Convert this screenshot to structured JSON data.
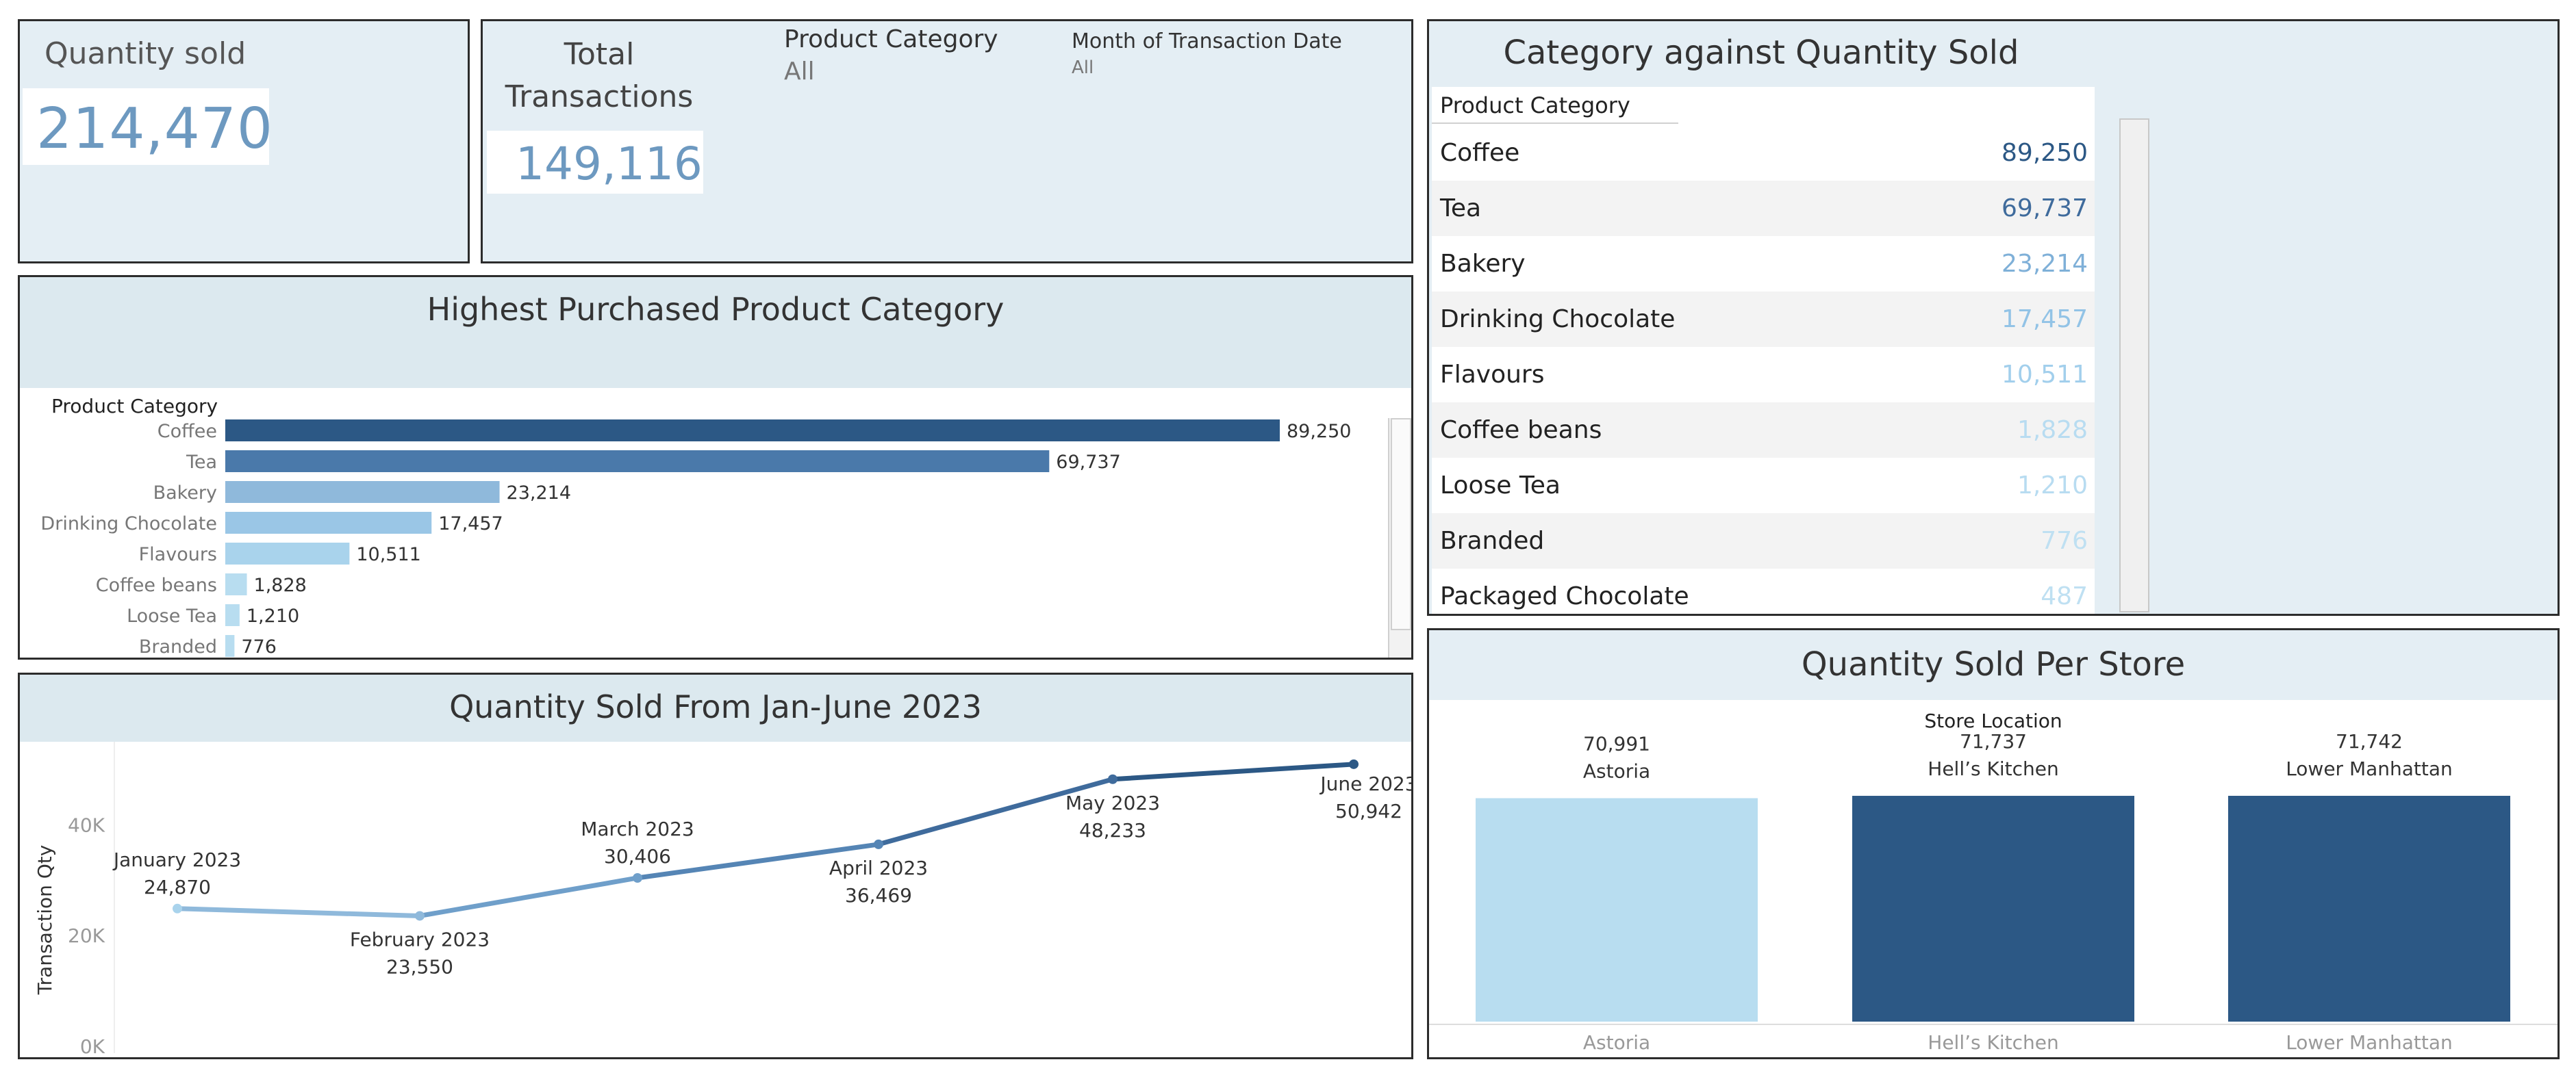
{
  "kpis": {
    "quantity_sold": {
      "label": "Quantity sold",
      "value": "214,470"
    },
    "total_transactions": {
      "label_line1": "Total",
      "label_line2": "Transactions",
      "value": "149,116"
    }
  },
  "filters": {
    "product_category": {
      "label": "Product Category",
      "value": "All"
    },
    "month": {
      "label": "Month of Transaction Date",
      "value": "All"
    }
  },
  "panels": {
    "highest_purchased": {
      "title": "Highest Purchased Product Category",
      "header": "Product Category"
    },
    "category_table": {
      "title": "Category against Quantity Sold",
      "header": "Product Category"
    },
    "line": {
      "title": "Quantity Sold From Jan-June 2023"
    },
    "store": {
      "title": "Quantity Sold Per Store"
    }
  },
  "colors": {
    "dark_blue": "#2c5885",
    "mid_blue": "#4a79aa",
    "light_blue": "#8fb9db",
    "pale_blue": "#a9d3ec",
    "palest_blue": "#b8ddf0"
  },
  "table_rows": [
    {
      "name": "Coffee",
      "value": "89,250",
      "color": "#2c5885"
    },
    {
      "name": "Tea",
      "value": "69,737",
      "color": "#3f6b9c"
    },
    {
      "name": "Bakery",
      "value": "23,214",
      "color": "#7fb0d8"
    },
    {
      "name": "Drinking Chocolate",
      "value": "17,457",
      "color": "#92c3e6"
    },
    {
      "name": "Flavours",
      "value": "10,511",
      "color": "#a2cfec"
    },
    {
      "name": "Coffee beans",
      "value": "1,828",
      "color": "#b8dcf1"
    },
    {
      "name": "Loose Tea",
      "value": "1,210",
      "color": "#b8dcf1"
    },
    {
      "name": "Branded",
      "value": "776",
      "color": "#bfe0f2"
    },
    {
      "name": "Packaged Chocolate",
      "value": "487",
      "color": "#bfe0f2"
    }
  ],
  "chart_data": [
    {
      "type": "bar",
      "orientation": "horizontal",
      "title": "Highest Purchased Product Category",
      "axis_header": "Product Category",
      "categories": [
        "Coffee",
        "Tea",
        "Bakery",
        "Drinking Chocolate",
        "Flavours",
        "Coffee beans",
        "Loose Tea",
        "Branded"
      ],
      "values": [
        89250,
        69737,
        23214,
        17457,
        10511,
        1828,
        1210,
        776
      ],
      "value_labels": [
        "89,250",
        "69,737",
        "23,214",
        "17,457",
        "10,511",
        "1,828",
        "1,210",
        "776"
      ],
      "colors": [
        "#2c5885",
        "#4a79aa",
        "#8fb9db",
        "#9ac6e6",
        "#a9d3ec",
        "#b8ddf0",
        "#b8ddf0",
        "#b8ddf0"
      ],
      "xlim": [
        0,
        89250
      ]
    },
    {
      "type": "line",
      "title": "Quantity Sold From Jan-June 2023",
      "ylabel": "Transaction Qty",
      "x": [
        "January 2023",
        "February 2023",
        "March 2023",
        "April 2023",
        "May 2023",
        "June 2023"
      ],
      "y": [
        24870,
        23550,
        30406,
        36469,
        48233,
        50942
      ],
      "point_labels": [
        "24,870",
        "23,550",
        "30,406",
        "36,469",
        "48,233",
        "50,942"
      ],
      "yticks": [
        "0K",
        "20K",
        "40K"
      ],
      "ylim": [
        0,
        55000
      ],
      "colors": [
        "#a9d3ec",
        "#8fb9db",
        "#6f9fca",
        "#5585b5",
        "#3f6b9c",
        "#2c5885"
      ]
    },
    {
      "type": "bar",
      "title": "Quantity Sold Per Store",
      "header": "Store Location",
      "categories": [
        "Astoria",
        "Hell’s Kitchen",
        "Lower Manhattan"
      ],
      "values": [
        70991,
        71737,
        71742
      ],
      "value_labels": [
        "70,991",
        "71,737",
        "71,742"
      ],
      "colors": [
        "#b8ddf0",
        "#2c5885",
        "#2c5885"
      ]
    }
  ]
}
